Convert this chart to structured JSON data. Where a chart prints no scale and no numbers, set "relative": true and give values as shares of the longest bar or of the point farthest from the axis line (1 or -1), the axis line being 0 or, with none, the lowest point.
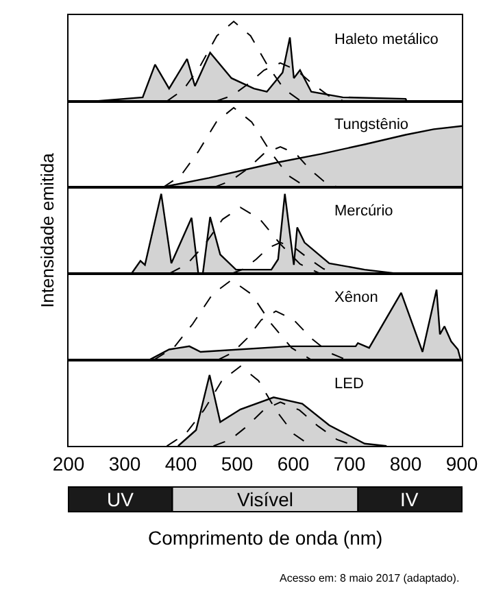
{
  "chart_data": [
    {
      "type": "area",
      "title": "Haleto metálico",
      "relative": true,
      "xlim": [
        200,
        900
      ],
      "tick_labels": false,
      "series": [
        {
          "type": "area",
          "color": "#d3d3d3",
          "x": [
            245,
            332,
            354,
            379,
            411,
            425,
            452,
            490,
            530,
            553,
            581,
            594,
            601,
            612,
            632,
            688,
            800,
            802
          ],
          "values": [
            0,
            0.05,
            0.46,
            0.16,
            0.53,
            0.19,
            0.61,
            0.29,
            0.16,
            0.12,
            0.36,
            0.8,
            0.29,
            0.39,
            0.12,
            0.05,
            0.03,
            0
          ]
        },
        {
          "type": "line",
          "color": "#000000",
          "line_style": "dashed",
          "x": [
            375,
            405,
            435,
            464,
            494,
            524,
            554,
            584,
            614
          ],
          "values": [
            0,
            0.15,
            0.45,
            0.82,
            1,
            0.82,
            0.45,
            0.15,
            0
          ]
        },
        {
          "type": "line",
          "color": "#000000",
          "line_style": "dashed",
          "x": [
            462,
            491,
            520,
            548,
            577,
            606,
            634,
            663,
            691
          ],
          "values": [
            0,
            0.07,
            0.22,
            0.39,
            0.48,
            0.39,
            0.22,
            0.07,
            0
          ]
        }
      ]
    },
    {
      "type": "area",
      "title": "Tungstênio",
      "relative": true,
      "xlim": [
        200,
        900
      ],
      "tick_labels": false,
      "series": [
        {
          "type": "area",
          "color": "#d3d3d3",
          "x": [
            364,
            450,
            569,
            650,
            727,
            800,
            850,
            900
          ],
          "values": [
            0,
            0.12,
            0.31,
            0.42,
            0.54,
            0.66,
            0.73,
            0.77
          ]
        },
        {
          "type": "line",
          "color": "#000000",
          "line_style": "dashed",
          "x": [
            368,
            400,
            431,
            463,
            494,
            526,
            559,
            591,
            624
          ],
          "values": [
            0,
            0.15,
            0.45,
            0.82,
            1,
            0.82,
            0.45,
            0.15,
            0
          ]
        },
        {
          "type": "line",
          "color": "#000000",
          "line_style": "dashed",
          "x": [
            458,
            488,
            518,
            547,
            577,
            605,
            629,
            654,
            680
          ],
          "values": [
            0,
            0.08,
            0.23,
            0.42,
            0.51,
            0.42,
            0.23,
            0.08,
            0
          ]
        }
      ]
    },
    {
      "type": "area",
      "title": "Mercúrio",
      "ylabel": "Intensidade emitida",
      "relative": true,
      "xlim": [
        200,
        900
      ],
      "tick_labels": false,
      "series": [
        {
          "type": "area",
          "color": "#d3d3d3",
          "x": [
            312,
            328,
            336,
            365,
            383,
            419,
            431,
            439,
            452,
            470,
            498,
            561,
            573,
            585,
            601,
            607,
            620,
            664,
            727,
            786
          ],
          "values": [
            0,
            0.16,
            0.11,
            1,
            0.13,
            0.7,
            0,
            0,
            0.71,
            0.24,
            0.05,
            0.05,
            0.18,
            1,
            0.11,
            0.58,
            0.39,
            0.13,
            0.05,
            0
          ]
        },
        {
          "type": "line",
          "color": "#000000",
          "line_style": "dashed",
          "x": [
            379,
            411,
            443,
            474,
            506,
            541,
            577,
            612,
            648
          ],
          "values": [
            0,
            0.12,
            0.37,
            0.68,
            0.83,
            0.68,
            0.37,
            0.12,
            0
          ]
        },
        {
          "type": "line",
          "color": "#000000",
          "line_style": "dashed",
          "x": [
            490,
            512,
            534,
            555,
            577,
            603,
            629,
            654,
            680
          ],
          "values": [
            0,
            0.06,
            0.18,
            0.32,
            0.39,
            0.32,
            0.18,
            0.06,
            0
          ]
        }
      ]
    },
    {
      "type": "area",
      "title": "Xênon",
      "relative": true,
      "xlim": [
        200,
        900
      ],
      "tick_labels": false,
      "series": [
        {
          "type": "area",
          "color": "#d3d3d3",
          "x": [
            344,
            379,
            415,
            435,
            593,
            711,
            715,
            735,
            792,
            830,
            855,
            861,
            869,
            881,
            893,
            898
          ],
          "values": [
            0,
            0.13,
            0.17,
            0.1,
            0.17,
            0.17,
            0.21,
            0.15,
            0.84,
            0.1,
            0.88,
            0.32,
            0.42,
            0.23,
            0.13,
            0
          ]
        },
        {
          "type": "line",
          "color": "#000000",
          "line_style": "dashed",
          "x": [
            352,
            387,
            421,
            456,
            490,
            526,
            561,
            597,
            632
          ],
          "values": [
            0,
            0.15,
            0.45,
            0.82,
            1,
            0.82,
            0.45,
            0.15,
            0
          ]
        },
        {
          "type": "line",
          "color": "#000000",
          "line_style": "dashed",
          "x": [
            466,
            492,
            518,
            543,
            569,
            601,
            632,
            664,
            695
          ],
          "values": [
            0,
            0.09,
            0.27,
            0.5,
            0.61,
            0.5,
            0.27,
            0.09,
            0
          ]
        }
      ]
    },
    {
      "type": "area",
      "title": "LED",
      "xlabel": "Comprimento de onda (nm)",
      "annotations": [
        "Acesso em: 8 maio 2017 (adaptado)."
      ],
      "relative": true,
      "xlim": [
        200,
        900
      ],
      "xticks": [
        200,
        300,
        400,
        500,
        600,
        700,
        800,
        900
      ],
      "tick_labels": "x",
      "series": [
        {
          "type": "area",
          "color": "#d3d3d3",
          "x": [
            395,
            427,
            451,
            470,
            506,
            565,
            616,
            664,
            727,
            766
          ],
          "values": [
            0,
            0.2,
            0.89,
            0.3,
            0.46,
            0.61,
            0.53,
            0.26,
            0.03,
            0
          ]
        },
        {
          "type": "line",
          "color": "#000000",
          "line_style": "dashed",
          "x": [
            375,
            408,
            441,
            473,
            506,
            538,
            569,
            601,
            632
          ],
          "values": [
            0,
            0.15,
            0.45,
            0.82,
            1,
            0.82,
            0.45,
            0.15,
            0
          ]
        },
        {
          "type": "line",
          "color": "#000000",
          "line_style": "dashed",
          "x": [
            458,
            488,
            518,
            547,
            577,
            611,
            644,
            678,
            711
          ],
          "values": [
            0,
            0.08,
            0.25,
            0.45,
            0.55,
            0.45,
            0.25,
            0.08,
            0
          ]
        }
      ]
    },
    {
      "type": "other",
      "categories": [
        "UV",
        "Visível",
        "IV"
      ],
      "colors": [
        "#1a1a1a",
        "#d3d3d3",
        "#1a1a1a"
      ]
    }
  ]
}
